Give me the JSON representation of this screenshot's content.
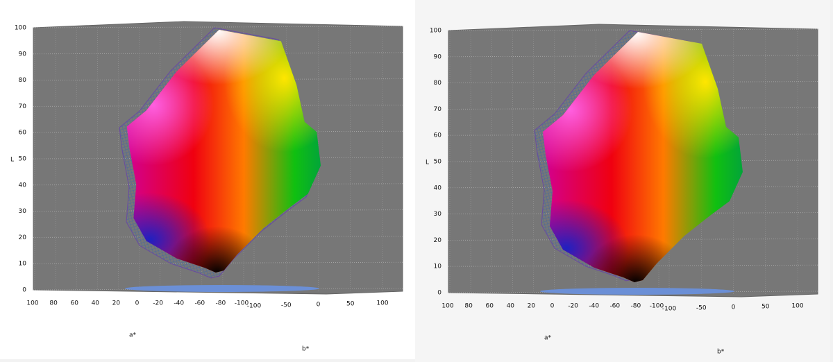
{
  "chart_data": [
    {
      "type": "gamut3d",
      "zlabel": "L",
      "xlabel": "a*",
      "ylabel": "b*",
      "zlim": [
        0,
        100
      ],
      "zticks": [
        0,
        10,
        20,
        30,
        40,
        50,
        60,
        70,
        80,
        90,
        100
      ],
      "xlim": [
        100,
        -100
      ],
      "xticks": [
        100,
        80,
        60,
        40,
        20,
        0,
        -20,
        -40,
        -60,
        -80,
        -100
      ],
      "ylim": [
        -100,
        100
      ],
      "yticks": [
        -100,
        -50,
        0,
        50,
        100
      ]
    },
    {
      "type": "gamut3d",
      "zlabel": "L",
      "xlabel": "a*",
      "ylabel": "b*",
      "zlim": [
        0,
        100
      ],
      "zticks": [
        0,
        10,
        20,
        30,
        40,
        50,
        60,
        70,
        80,
        90,
        100
      ],
      "xlim": [
        100,
        -100
      ],
      "xticks": [
        100,
        80,
        60,
        40,
        20,
        0,
        -20,
        -40,
        -60,
        -80,
        -100
      ],
      "ylim": [
        -100,
        100
      ],
      "yticks": [
        -100,
        -50,
        0,
        50,
        100
      ]
    }
  ]
}
